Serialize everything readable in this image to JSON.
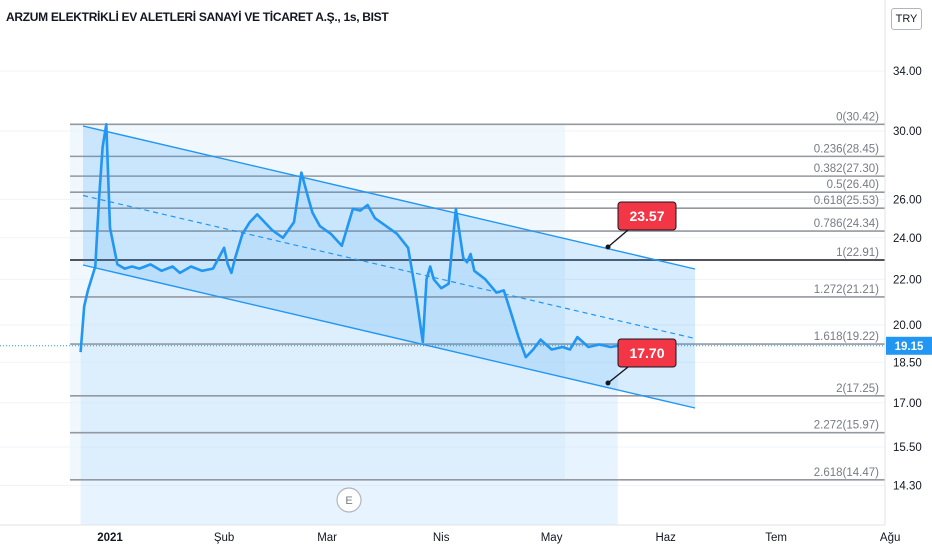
{
  "header": {
    "symbol_title": "ARZUM ELEKTRİKLİ EV ALETLERİ SANAYİ VE TİCARET A.Ş., 1s, BIST",
    "currency": "TRY"
  },
  "price_axis": {
    "ticks": [
      "34.00",
      "30.00",
      "26.00",
      "24.00",
      "22.00",
      "20.00",
      "18.50",
      "17.00",
      "15.50",
      "14.30"
    ],
    "current_price": "19.15"
  },
  "time_axis": {
    "ticks": [
      "2021",
      "Şub",
      "Mar",
      "Nis",
      "May",
      "Haz",
      "Tem",
      "Ağu"
    ]
  },
  "fib_levels": [
    {
      "label": "0(30.42)",
      "value": 30.42
    },
    {
      "label": "0.236(28.45)",
      "value": 28.45
    },
    {
      "label": "0.382(27.30)",
      "value": 27.3
    },
    {
      "label": "0.5(26.40)",
      "value": 26.4
    },
    {
      "label": "0.618(25.53)",
      "value": 25.53
    },
    {
      "label": "0.786(24.34)",
      "value": 24.34
    },
    {
      "label": "1(22.91)",
      "value": 22.91
    },
    {
      "label": "1.272(21.21)",
      "value": 21.21
    },
    {
      "label": "1.618(19.22)",
      "value": 19.22
    },
    {
      "label": "2(17.25)",
      "value": 17.25
    },
    {
      "label": "2.272(15.97)",
      "value": 15.97
    },
    {
      "label": "2.618(14.47)",
      "value": 14.47
    }
  ],
  "channel_labels": {
    "upper": "23.57",
    "lower": "17.70"
  },
  "earnings_marker": "E",
  "colors": {
    "price_line": "#2196f3",
    "channel": "#2196f3",
    "fib_line": "#9598a1",
    "callout": "#f23645",
    "price_tag": "#2196f3"
  },
  "chart_data": {
    "type": "line",
    "title": "ARZUM ELEKTRİKLİ EV ALETLERİ SANAYİ VE TİCARET A.Ş., 1s, BIST",
    "xlabel": "",
    "ylabel": "",
    "scale": "log",
    "ylim": [
      13.8,
      36.0
    ],
    "x": [
      "2020-12-24",
      "2020-12-25",
      "2020-12-26",
      "2020-12-28",
      "2020-12-29",
      "2020-12-30",
      "2020-12-31",
      "2021-01-01",
      "2021-01-03",
      "2021-01-05",
      "2021-01-07",
      "2021-01-09",
      "2021-01-12",
      "2021-01-15",
      "2021-01-18",
      "2021-01-20",
      "2021-01-23",
      "2021-01-26",
      "2021-01-29",
      "2021-02-01",
      "2021-02-02",
      "2021-02-03",
      "2021-02-04",
      "2021-02-06",
      "2021-02-08",
      "2021-02-10",
      "2021-02-14",
      "2021-02-17",
      "2021-02-20",
      "2021-02-22",
      "2021-02-24",
      "2021-02-25",
      "2021-02-27",
      "2021-03-02",
      "2021-03-05",
      "2021-03-08",
      "2021-03-10",
      "2021-03-12",
      "2021-03-14",
      "2021-03-17",
      "2021-03-20",
      "2021-03-23",
      "2021-03-25",
      "2021-03-27",
      "2021-03-28",
      "2021-03-29",
      "2021-03-30",
      "2021-04-01",
      "2021-04-03",
      "2021-04-05",
      "2021-04-07",
      "2021-04-08",
      "2021-04-09",
      "2021-04-10",
      "2021-04-13",
      "2021-04-16",
      "2021-04-18",
      "2021-04-20",
      "2021-04-22",
      "2021-04-24",
      "2021-04-26",
      "2021-04-28",
      "2021-05-01",
      "2021-05-04",
      "2021-05-06",
      "2021-05-08",
      "2021-05-11",
      "2021-05-14",
      "2021-05-17",
      "2021-05-19"
    ],
    "series": [
      {
        "values": [
          18.9,
          20.8,
          21.5,
          22.6,
          26.0,
          29.0,
          30.42,
          24.5,
          22.7,
          22.5,
          22.6,
          22.5,
          22.7,
          22.4,
          22.6,
          22.3,
          22.6,
          22.4,
          22.5,
          23.5,
          22.7,
          22.3,
          23.0,
          24.2,
          24.8,
          25.2,
          24.4,
          24.0,
          24.8,
          27.5,
          26.0,
          25.3,
          24.6,
          24.2,
          23.6,
          25.5,
          25.4,
          25.7,
          25.0,
          24.6,
          24.2,
          23.5,
          21.5,
          19.3,
          22.0,
          22.6,
          22.0,
          21.6,
          21.8,
          25.5,
          23.0,
          22.8,
          23.2,
          22.4,
          22.0,
          21.4,
          21.5,
          20.5,
          19.5,
          18.7,
          19.0,
          19.4,
          19.0,
          19.1,
          19.0,
          19.5,
          19.1,
          19.2,
          19.1,
          19.15
        ]
      }
    ],
    "current_price": 19.15,
    "channel": {
      "upper_label_value": 23.57,
      "lower_label_value": 17.7
    },
    "grid": false
  }
}
